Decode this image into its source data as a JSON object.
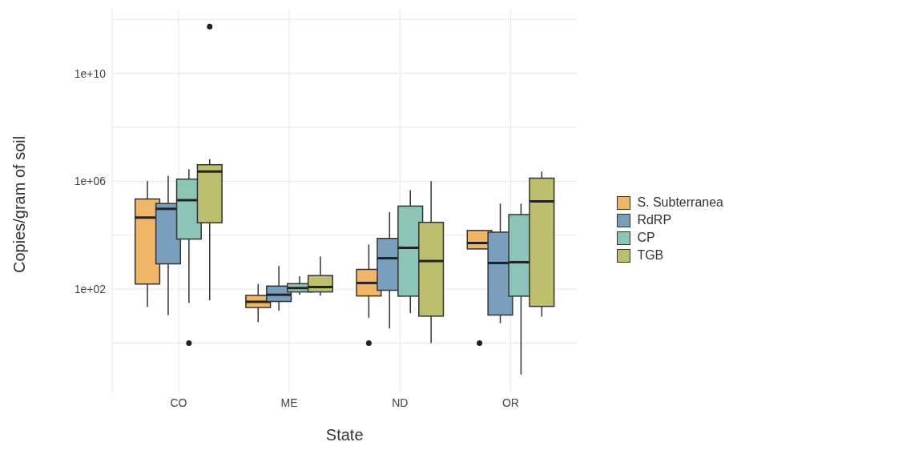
{
  "chart_data": {
    "type": "box",
    "xlabel": "State",
    "ylabel": "Copies/gram of soil",
    "categories": [
      "CO",
      "ME",
      "ND",
      "OR"
    ],
    "log": "y",
    "ylim": [
      0.015,
      2300000000000.0
    ],
    "yticks": [
      {
        "value": 1,
        "label": null
      },
      {
        "value": 100,
        "label": "1e+02"
      },
      {
        "value": 10000,
        "label": null
      },
      {
        "value": 1000000,
        "label": "1e+06"
      },
      {
        "value": 100000000,
        "label": null
      },
      {
        "value": 10000000000,
        "label": "1e+10"
      },
      {
        "value": 1000000000000,
        "label": null
      }
    ],
    "grid": true,
    "legend": "right",
    "series": [
      {
        "name": "S. Subterranea",
        "color": "#f0b566",
        "boxes": [
          {
            "low": 22,
            "q1": 155,
            "median": 45000,
            "q3": 220000,
            "high": 1000000
          },
          {
            "low": 6,
            "q1": 21,
            "median": 34,
            "q3": 59,
            "high": 155
          },
          {
            "low": 8.7,
            "q1": 56,
            "median": 170,
            "q3": 540,
            "high": 4500,
            "outliers": [
              1
            ]
          },
          {
            "low": 3100,
            "q1": 3100,
            "median": 5100,
            "q3": 15000,
            "high": 15000,
            "outliers": [
              1
            ]
          }
        ]
      },
      {
        "name": "RdRP",
        "color": "#7a9fbd",
        "boxes": [
          {
            "low": 11,
            "q1": 870,
            "median": 95000,
            "q3": 150000,
            "high": 1600000
          },
          {
            "low": 16,
            "q1": 35,
            "median": 62,
            "q3": 130,
            "high": 720
          },
          {
            "low": 3.5,
            "q1": 91,
            "median": 1400,
            "q3": 7600,
            "high": 72000
          },
          {
            "low": 5.4,
            "q1": 11,
            "median": 930,
            "q3": 13000,
            "high": 150000
          }
        ]
      },
      {
        "name": "CP",
        "color": "#8cc4b8",
        "boxes": [
          {
            "low": 31,
            "q1": 7200,
            "median": 200000,
            "q3": 1200000,
            "high": 2800000,
            "outliers": [
              1
            ]
          },
          {
            "low": 62,
            "q1": 79,
            "median": 110,
            "q3": 160,
            "high": 300
          },
          {
            "low": 13,
            "q1": 55,
            "median": 3400,
            "q3": 120000,
            "high": 470000
          },
          {
            "low": 0.069,
            "q1": 55,
            "median": 1000,
            "q3": 58000,
            "high": 150000
          }
        ]
      },
      {
        "name": "TGB",
        "color": "#bcbf6e",
        "boxes": [
          {
            "low": 39,
            "q1": 29000,
            "median": 2300000,
            "q3": 4100000,
            "high": 6600000,
            "outliers": [
              540000000000
            ]
          },
          {
            "low": 58,
            "q1": 79,
            "median": 120,
            "q3": 320,
            "high": 1600
          },
          {
            "low": 1,
            "q1": 10,
            "median": 1100,
            "q3": 30000,
            "high": 1000000
          },
          {
            "low": 9.5,
            "q1": 23,
            "median": 180000,
            "q3": 1300000,
            "high": 2300000
          }
        ]
      }
    ]
  }
}
